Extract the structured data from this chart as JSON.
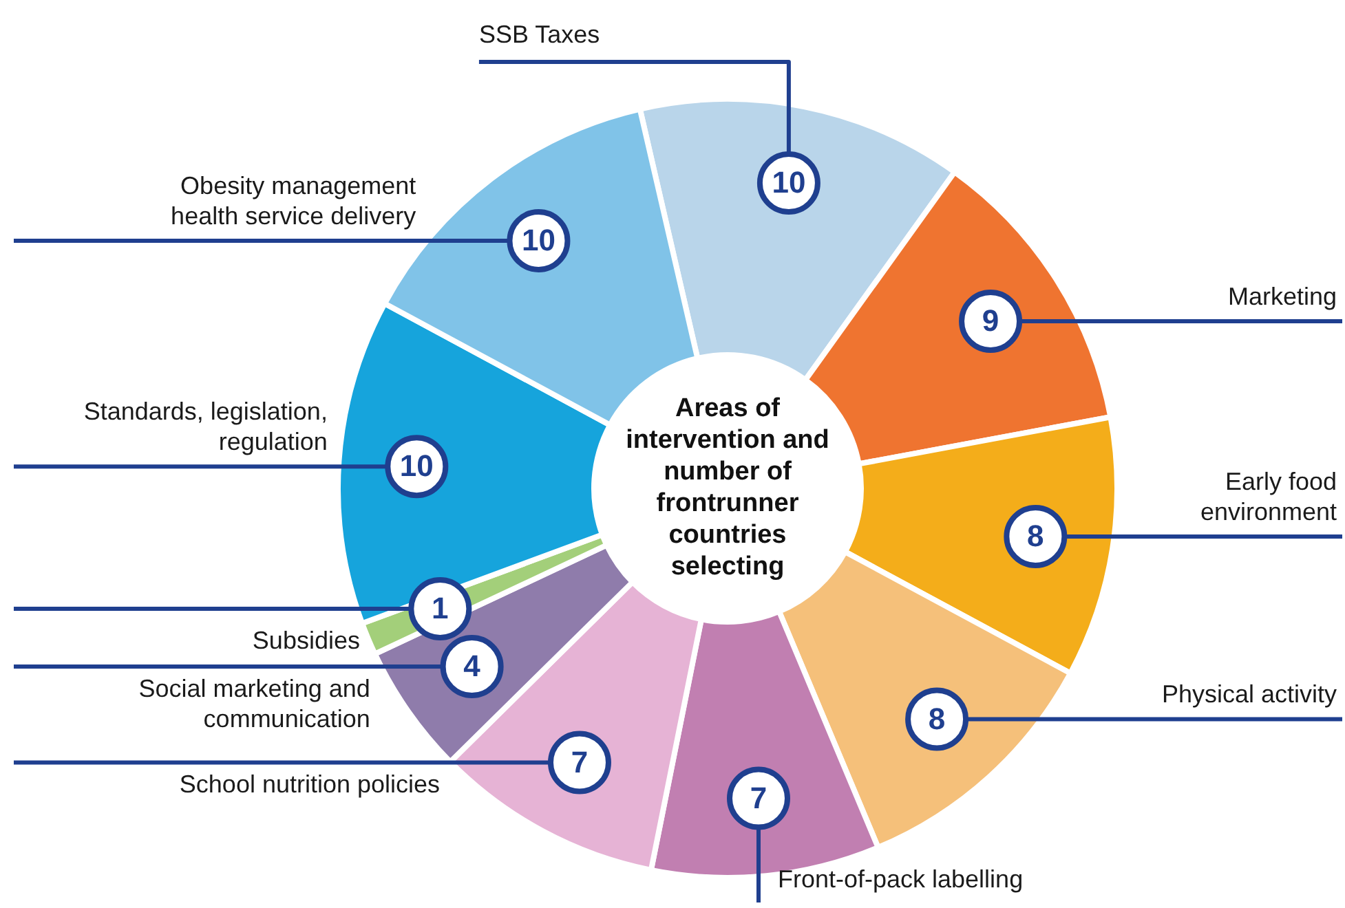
{
  "chart_data": {
    "type": "donut",
    "title": "Areas of intervention and number of frontrunner countries selecting",
    "categories": [
      "SSB Taxes",
      "Marketing",
      "Early food environment",
      "Physical activity",
      "Front-of-pack labelling",
      "School nutrition policies",
      "Social marketing and communication",
      "Subsidies",
      "Standards, legislation, regulation",
      "Obesity management health service delivery"
    ],
    "values": [
      10,
      9,
      8,
      8,
      7,
      7,
      4,
      1,
      10,
      10
    ],
    "colors": [
      "#b9d5ea",
      "#ef7430",
      "#f4ad1a",
      "#f5c07a",
      "#c17fb1",
      "#e6b3d5",
      "#8f7cab",
      "#a3cf7a",
      "#16a4dc",
      "#80c3e8"
    ],
    "data_labels": true,
    "legend": false
  }
}
